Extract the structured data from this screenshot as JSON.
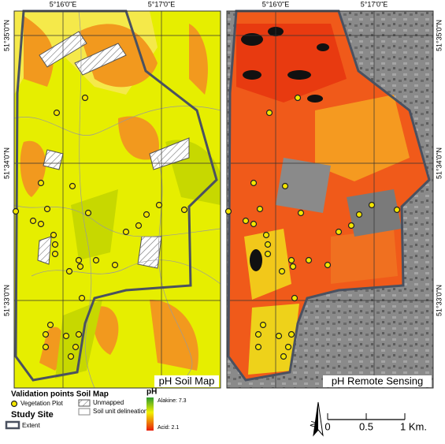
{
  "maps": [
    {
      "title": "pH Soil Map",
      "x_labels": [
        "5°16'0\"E",
        "5°17'0\"E"
      ],
      "y_labels": [
        "51°35'0\"N",
        "51°34'0\"N",
        "51°33'0\"N"
      ]
    },
    {
      "title": "pH Remote Sensing",
      "x_labels": [
        "5°16'0\"E",
        "5°17'0\"E"
      ],
      "y_labels": [
        "51°35'0\"N",
        "51°34'0\"N",
        "51°33'0\"N"
      ]
    }
  ],
  "legend": {
    "validation_title": "Validation points Soil Map",
    "vegetation_plot": "Vegetation Plot",
    "unmapped": "Unmapped",
    "soil_unit": "Soil unit delineation",
    "study_site_title": "Study Site",
    "extent": "Extent",
    "ph_title": "pH",
    "ph_high": "Alakine: 7.3",
    "ph_low": "Acid: 2.1"
  },
  "scale_bar": {
    "labels": [
      "0",
      "0.5",
      "1 Km."
    ]
  },
  "north": "N"
}
